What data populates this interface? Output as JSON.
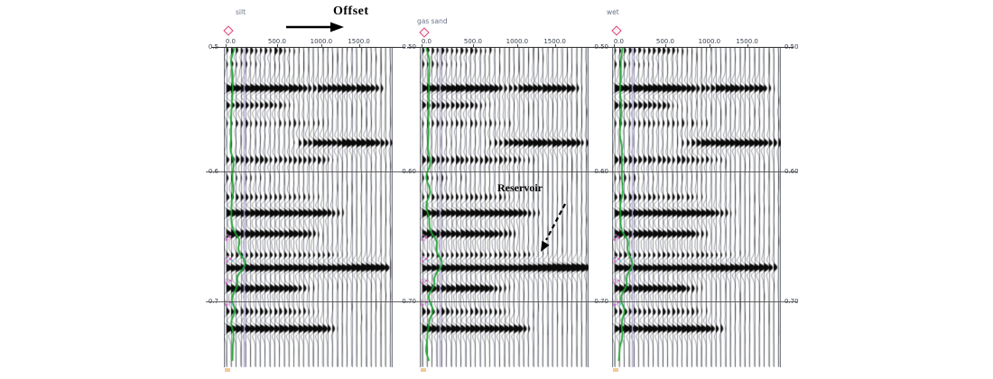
{
  "annotations": {
    "offset_label": "Offset",
    "reservoir_label": "Reservoir"
  },
  "panels": [
    {
      "title": "silt"
    },
    {
      "title": "gas sand"
    },
    {
      "title": "wet"
    }
  ],
  "offset_axis": {
    "tick_labels": [
      "0.0",
      "500.0",
      "1000.0",
      "1500.0"
    ],
    "fractions": [
      0.01,
      0.315,
      0.577,
      0.8
    ]
  },
  "time_axis": {
    "times_s": [
      0.5,
      0.6,
      0.7
    ],
    "left_labels_panel1": [
      "0.5",
      "0.6",
      "0.7"
    ],
    "left_labels": [
      "0.50",
      "0.60",
      "0.70"
    ],
    "right_labels": [
      "0.50",
      "0.60",
      "0.70"
    ]
  },
  "markers": {
    "source_marker": "red-diamond",
    "well_log_color": "#17a62e",
    "aux_log_color": "#b2a6d7"
  },
  "chart_data": {
    "type": "seismic-wiggle-gather",
    "title": "",
    "panels": [
      "silt",
      "gas sand",
      "wet"
    ],
    "xlabel": "Offset",
    "offset_range_m": [
      0,
      1900
    ],
    "offset_ticks_m": [
      0,
      500,
      1000,
      1500
    ],
    "time_range_s": [
      0.5,
      0.75
    ],
    "time_ticks_s": [
      0.5,
      0.6,
      0.7
    ],
    "n_traces": 35,
    "annotation_target": "Reservoir event at ~0.674 s, far-offset amplitude brightening in gas sand panel",
    "events": [
      {
        "t": 0.507,
        "amp": 0.4,
        "profile": [
          [
            0,
            0.8
          ],
          [
            0.3,
            1
          ],
          [
            0.5,
            0
          ]
        ]
      },
      {
        "t": 0.517,
        "amp": 0.3,
        "profile": [
          [
            0,
            1
          ],
          [
            0.35,
            0
          ]
        ]
      },
      {
        "t": 0.536,
        "amp": 0.95,
        "profile": [
          [
            0,
            1
          ],
          [
            0.4,
            0.9
          ],
          [
            0.5,
            0.45
          ],
          [
            0.62,
            0.9
          ],
          [
            0.88,
            0.8
          ],
          [
            0.98,
            0
          ]
        ]
      },
      {
        "t": 0.549,
        "amp": 0.55,
        "profile": [
          [
            0,
            1
          ],
          [
            0.28,
            0.9
          ],
          [
            0.42,
            0
          ]
        ]
      },
      {
        "t": 0.563,
        "amp": 0.3,
        "profile": [
          [
            0,
            1
          ],
          [
            0.5,
            0.7
          ],
          [
            0.62,
            0
          ]
        ]
      },
      {
        "t": 0.578,
        "amp": 0.85,
        "profile": [
          [
            0.38,
            0
          ],
          [
            0.52,
            0.95
          ],
          [
            0.88,
            1
          ],
          [
            1,
            0.35
          ]
        ]
      },
      {
        "t": 0.591,
        "amp": 0.5,
        "profile": [
          [
            0,
            1
          ],
          [
            0.55,
            0.8
          ],
          [
            0.72,
            0
          ]
        ]
      },
      {
        "t": 0.605,
        "amp": 0.28,
        "profile": [
          [
            0,
            1
          ],
          [
            0.3,
            0
          ]
        ]
      },
      {
        "t": 0.62,
        "amp": 0.4,
        "profile": [
          [
            0,
            1
          ],
          [
            0.45,
            0.8
          ],
          [
            0.6,
            0
          ]
        ]
      },
      {
        "t": 0.632,
        "amp": 0.85,
        "profile": [
          [
            0,
            1
          ],
          [
            0.55,
            1
          ],
          [
            0.75,
            0
          ]
        ]
      },
      {
        "t": 0.648,
        "amp": 0.78,
        "profile": [
          [
            0,
            1
          ],
          [
            0.42,
            1
          ],
          [
            0.6,
            0
          ]
        ]
      },
      {
        "t": 0.665,
        "amp": 0.55,
        "profile": [
          [
            0,
            1
          ],
          [
            0.6,
            0.9
          ],
          [
            0.82,
            0
          ]
        ]
      },
      {
        "t": 0.674,
        "amp": 1.0,
        "profile": [
          [
            0,
            1
          ],
          [
            0.7,
            1
          ],
          [
            0.93,
            0.9
          ],
          [
            1,
            0.3
          ]
        ],
        "profiles": {
          "0": [
            [
              0,
              1
            ],
            [
              0.7,
              1
            ],
            [
              0.92,
              1.05
            ],
            [
              0.99,
              0.35
            ],
            [
              1,
              0
            ]
          ],
          "1": [
            [
              0,
              1
            ],
            [
              0.55,
              1.05
            ],
            [
              0.82,
              1.35
            ],
            [
              0.96,
              1.15
            ],
            [
              1,
              0.45
            ]
          ],
          "2": [
            [
              0,
              1
            ],
            [
              0.62,
              1
            ],
            [
              0.88,
              0.9
            ],
            [
              0.97,
              0.5
            ],
            [
              1,
              0
            ]
          ]
        }
      },
      {
        "t": 0.69,
        "amp": 0.8,
        "profile": [
          [
            0,
            1
          ],
          [
            0.38,
            1
          ],
          [
            0.55,
            0
          ]
        ]
      },
      {
        "t": 0.708,
        "amp": 0.45,
        "profile": [
          [
            0,
            1
          ],
          [
            0.45,
            0.8
          ],
          [
            0.6,
            0
          ]
        ]
      },
      {
        "t": 0.721,
        "amp": 0.85,
        "profile": [
          [
            0,
            1
          ],
          [
            0.55,
            1
          ],
          [
            0.7,
            0
          ]
        ]
      }
    ]
  }
}
